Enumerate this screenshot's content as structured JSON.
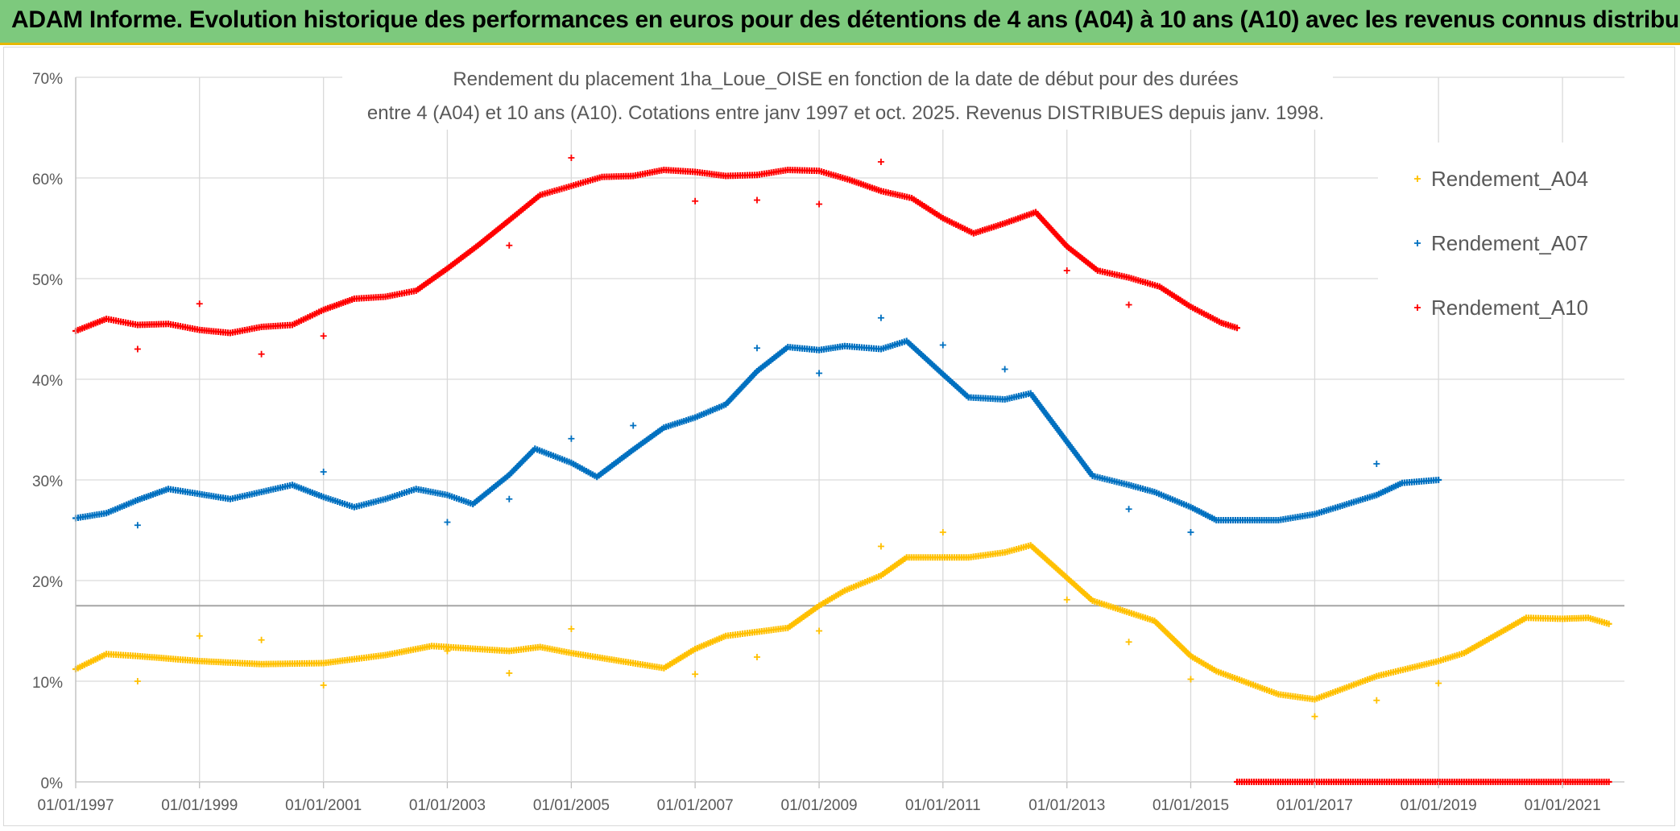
{
  "banner": {
    "title": "ADAM Informe. Evolution historique des performances en euros pour des détentions de 4 ans (A04) à 10 ans (A10) avec les revenus connus distribués",
    "background": "#7dc97d",
    "accent": "#e5b800"
  },
  "chart_data": {
    "type": "scatter",
    "title_line1": "Rendement du placement 1ha_Loue_OISE en fonction de la date de début pour des durées",
    "title_line2": "entre 4 (A04) et 10 ans (A10). Cotations entre janv 1997 et oct. 2025. Revenus DISTRIBUES depuis janv. 1998.",
    "xlabel": "",
    "ylabel": "",
    "x_range": [
      "1997-01-01",
      "2022-01-01"
    ],
    "ylim": [
      0,
      70
    ],
    "y_ticks": [
      0,
      10,
      20,
      30,
      40,
      50,
      60,
      70
    ],
    "y_tick_labels": [
      "0%",
      "10%",
      "20%",
      "30%",
      "40%",
      "50%",
      "60%",
      "70%"
    ],
    "x_ticks": [
      "1997-01-01",
      "1999-01-01",
      "2001-01-01",
      "2003-01-01",
      "2005-01-01",
      "2007-01-01",
      "2009-01-01",
      "2011-01-01",
      "2013-01-01",
      "2015-01-01",
      "2017-01-01",
      "2019-01-01",
      "2021-01-01"
    ],
    "x_tick_labels": [
      "01/01/1997",
      "01/01/1999",
      "01/01/2001",
      "01/01/2003",
      "01/01/2005",
      "01/01/2007",
      "01/01/2009",
      "01/01/2011",
      "01/01/2013",
      "01/01/2015",
      "01/01/2017",
      "01/01/2019",
      "01/01/2021"
    ],
    "grid": true,
    "legend_position": "right",
    "reference_line_y": 17.5,
    "series": [
      {
        "name": "Rendement_A04",
        "color": "#ffc000",
        "x": [
          "1997-01-01",
          "1997-07-01",
          "1998-01-01",
          "1999-01-01",
          "2000-01-01",
          "2001-01-01",
          "2002-01-01",
          "2002-10-01",
          "2004-01-01",
          "2004-07-01",
          "2005-01-01",
          "2006-07-01",
          "2007-01-01",
          "2007-07-01",
          "2008-07-01",
          "2009-01-01",
          "2009-06-01",
          "2010-01-01",
          "2010-06-01",
          "2011-06-01",
          "2012-01-01",
          "2012-06-01",
          "2013-06-01",
          "2014-06-01",
          "2015-01-01",
          "2015-06-01",
          "2016-06-01",
          "2017-01-01",
          "2018-01-01",
          "2019-01-01",
          "2019-06-01",
          "2020-06-01",
          "2021-01-01",
          "2021-06-01",
          "2021-10-01"
        ],
        "values": [
          11.2,
          12.7,
          12.5,
          12.0,
          11.7,
          11.8,
          12.6,
          13.5,
          13.0,
          13.4,
          12.8,
          11.3,
          13.2,
          14.5,
          15.3,
          17.5,
          19.0,
          20.5,
          22.3,
          22.3,
          22.8,
          23.5,
          18.0,
          16.0,
          12.5,
          11.0,
          8.7,
          8.2,
          10.5,
          12.0,
          12.8,
          16.3,
          16.2,
          16.3,
          15.7
        ],
        "outliers": [
          [
            "1998-01-01",
            10.0
          ],
          [
            "1999-01-01",
            14.5
          ],
          [
            "2000-01-01",
            14.1
          ],
          [
            "2001-01-01",
            9.6
          ],
          [
            "2003-01-01",
            13.0
          ],
          [
            "2004-01-01",
            10.8
          ],
          [
            "2005-01-01",
            15.2
          ],
          [
            "2007-01-01",
            10.7
          ],
          [
            "2008-01-01",
            12.4
          ],
          [
            "2009-01-01",
            15.0
          ],
          [
            "2010-01-01",
            23.4
          ],
          [
            "2011-01-01",
            24.8
          ],
          [
            "2013-01-01",
            18.1
          ],
          [
            "2014-01-01",
            13.9
          ],
          [
            "2015-01-01",
            10.2
          ],
          [
            "2017-01-01",
            6.5
          ],
          [
            "2018-01-01",
            8.1
          ],
          [
            "2019-01-01",
            9.8
          ]
        ]
      },
      {
        "name": "Rendement_A07",
        "color": "#0070c0",
        "x": [
          "1997-01-01",
          "1997-07-01",
          "1998-01-01",
          "1998-07-01",
          "1999-01-01",
          "1999-07-01",
          "2000-01-01",
          "2000-07-01",
          "2001-01-01",
          "2001-07-01",
          "2002-01-01",
          "2002-07-01",
          "2003-01-01",
          "2003-06-01",
          "2004-01-01",
          "2004-06-01",
          "2005-01-01",
          "2005-06-01",
          "2006-01-01",
          "2006-07-01",
          "2007-01-01",
          "2007-07-01",
          "2008-01-01",
          "2008-07-01",
          "2009-01-01",
          "2009-06-01",
          "2010-01-01",
          "2010-06-01",
          "2011-01-01",
          "2011-06-01",
          "2012-01-01",
          "2012-06-01",
          "2013-06-01",
          "2014-01-01",
          "2014-06-01",
          "2015-01-01",
          "2015-06-01",
          "2016-06-01",
          "2017-01-01",
          "2018-01-01",
          "2018-06-01",
          "2019-01-01"
        ],
        "values": [
          26.2,
          26.7,
          28.0,
          29.1,
          28.6,
          28.1,
          28.8,
          29.5,
          28.3,
          27.3,
          28.1,
          29.1,
          28.5,
          27.6,
          30.5,
          33.1,
          31.7,
          30.3,
          33.0,
          35.2,
          36.2,
          37.5,
          40.8,
          43.2,
          42.9,
          43.3,
          43.0,
          43.8,
          40.5,
          38.2,
          38.0,
          38.6,
          30.4,
          29.5,
          28.8,
          27.3,
          26.0,
          26.0,
          26.6,
          28.5,
          29.7,
          30.0
        ],
        "outliers": [
          [
            "1998-01-01",
            25.5
          ],
          [
            "2001-01-01",
            30.8
          ],
          [
            "2003-01-01",
            25.8
          ],
          [
            "2004-01-01",
            28.1
          ],
          [
            "2005-01-01",
            34.1
          ],
          [
            "2006-01-01",
            35.4
          ],
          [
            "2008-01-01",
            43.1
          ],
          [
            "2009-01-01",
            40.6
          ],
          [
            "2010-01-01",
            46.1
          ],
          [
            "2011-01-01",
            43.4
          ],
          [
            "2012-01-01",
            41.0
          ],
          [
            "2014-01-01",
            27.1
          ],
          [
            "2015-01-01",
            24.8
          ],
          [
            "2018-01-01",
            31.6
          ]
        ]
      },
      {
        "name": "Rendement_A10",
        "color": "#ff0000",
        "x": [
          "1997-01-01",
          "1997-07-01",
          "1998-01-01",
          "1998-07-01",
          "1999-01-01",
          "1999-07-01",
          "2000-01-01",
          "2000-07-01",
          "2001-01-01",
          "2001-07-01",
          "2002-01-01",
          "2002-07-01",
          "2003-01-01",
          "2003-07-01",
          "2004-01-01",
          "2004-07-01",
          "2005-01-01",
          "2005-07-01",
          "2006-01-01",
          "2006-07-01",
          "2007-01-01",
          "2007-07-01",
          "2008-01-01",
          "2008-07-01",
          "2009-01-01",
          "2009-07-01",
          "2010-01-01",
          "2010-07-01",
          "2011-01-01",
          "2011-07-01",
          "2012-01-01",
          "2012-07-01",
          "2013-01-01",
          "2013-07-01",
          "2014-01-01",
          "2014-07-01",
          "2015-01-01",
          "2015-07-01",
          "2015-10-01"
        ],
        "values": [
          44.8,
          46.0,
          45.4,
          45.5,
          44.9,
          44.6,
          45.2,
          45.4,
          46.9,
          48.0,
          48.2,
          48.8,
          51.0,
          53.3,
          55.8,
          58.3,
          59.2,
          60.1,
          60.2,
          60.8,
          60.6,
          60.2,
          60.3,
          60.8,
          60.7,
          59.8,
          58.7,
          58.0,
          56.0,
          54.5,
          55.5,
          56.6,
          53.2,
          50.8,
          50.1,
          49.2,
          47.2,
          45.6,
          45.1
        ],
        "outliers": [
          [
            "1998-01-01",
            43.0
          ],
          [
            "1999-01-01",
            47.5
          ],
          [
            "2000-01-01",
            42.5
          ],
          [
            "2001-01-01",
            44.3
          ],
          [
            "2004-01-01",
            53.3
          ],
          [
            "2005-01-01",
            62.0
          ],
          [
            "2007-01-01",
            57.7
          ],
          [
            "2008-01-01",
            57.8
          ],
          [
            "2009-01-01",
            57.4
          ],
          [
            "2010-01-01",
            61.6
          ],
          [
            "2013-01-01",
            50.8
          ],
          [
            "2014-01-01",
            47.4
          ]
        ],
        "zero_range": [
          "2015-10-01",
          "2021-10-01"
        ]
      }
    ]
  }
}
